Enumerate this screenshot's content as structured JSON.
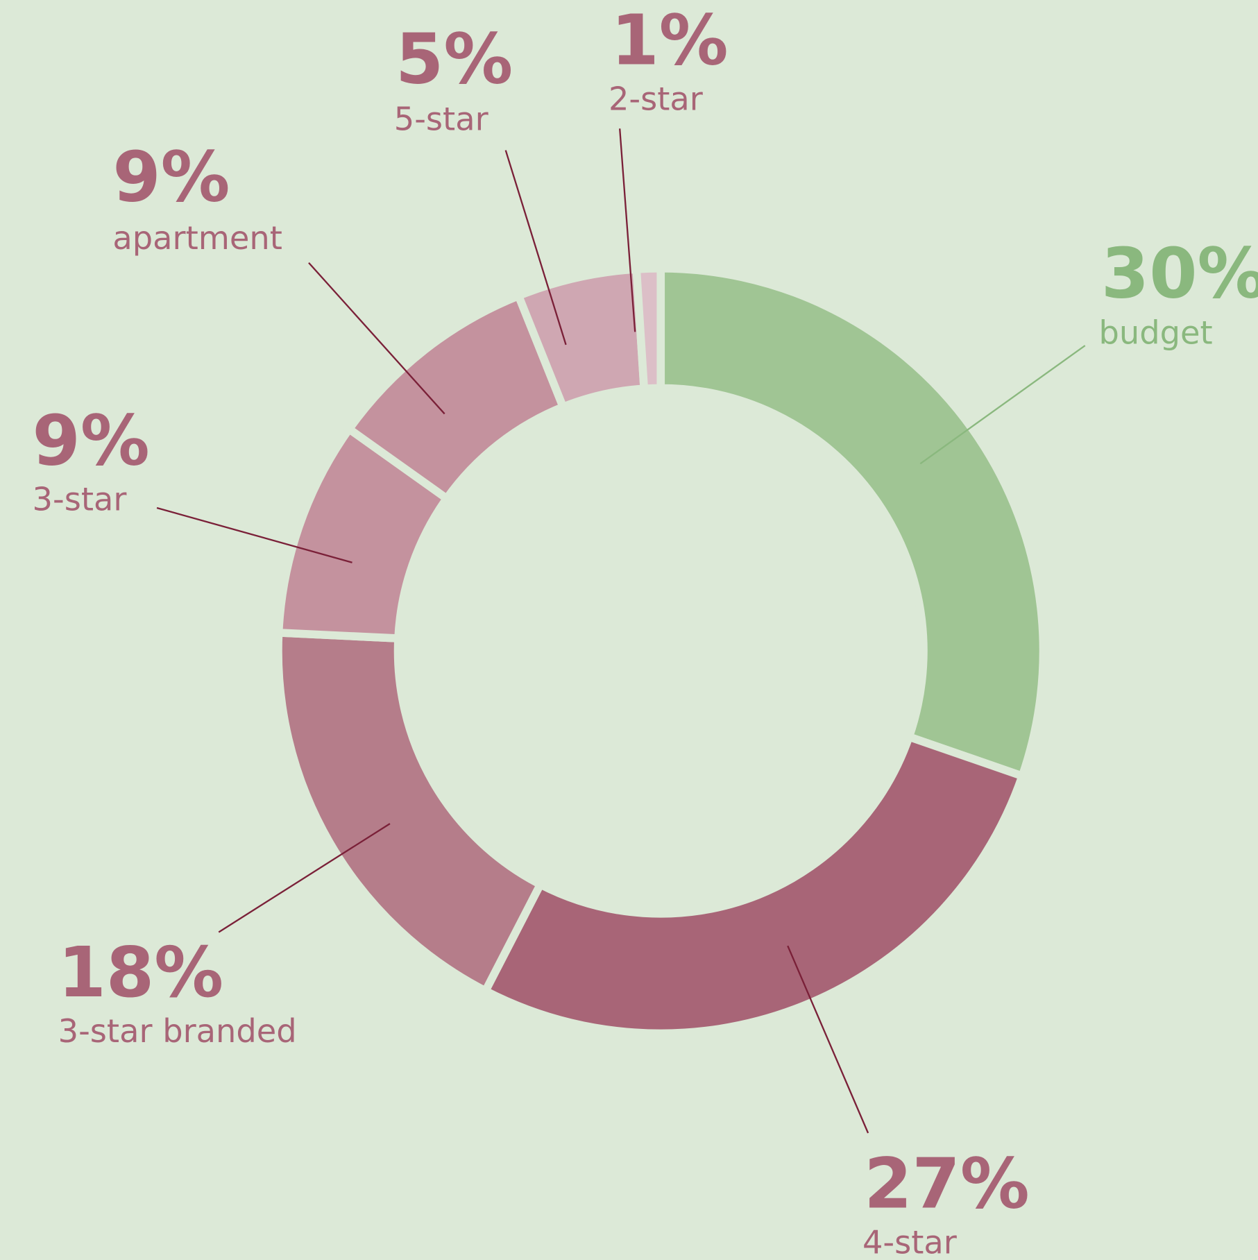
{
  "chart_data": {
    "type": "donut",
    "categories": [
      "budget",
      "4-star",
      "3-star branded",
      "3-star",
      "apartment",
      "5-star",
      "2-star"
    ],
    "values": [
      30,
      27,
      18,
      9,
      9,
      5,
      1
    ],
    "value_labels": [
      "30%",
      "27%",
      "18%",
      "9%",
      "9%",
      "5%",
      "1%"
    ],
    "colors": [
      "#a0c594",
      "#a86577",
      "#b57d8a",
      "#c4929e",
      "#c4929e",
      "#cfa7b2",
      "#dcbfc7"
    ],
    "label_colors": [
      "#8ab87e",
      "#a86577",
      "#a86577",
      "#a86577",
      "#a86577",
      "#a86577",
      "#a86577"
    ]
  }
}
